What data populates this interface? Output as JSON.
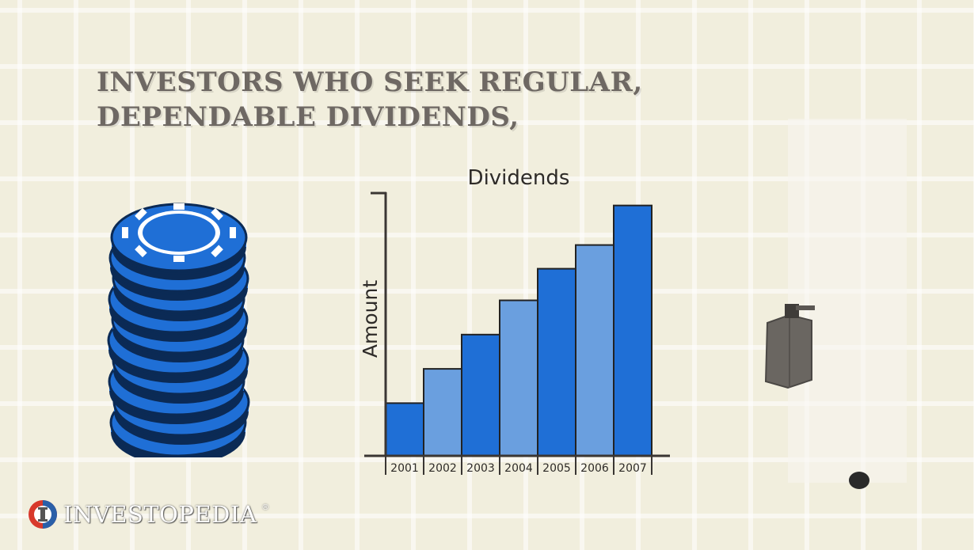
{
  "headline": "INVESTORS WHO SEEK REGULAR, DEPENDABLE DIVIDENDS,",
  "logo": {
    "text": "INVESTOPEDIA",
    "reg": "®"
  },
  "chart_data": {
    "type": "bar",
    "title": "Dividends",
    "xlabel": "",
    "ylabel": "Amount",
    "categories": [
      "2001",
      "2002",
      "2003",
      "2004",
      "2005",
      "2006",
      "2007"
    ],
    "values": [
      20,
      33,
      46,
      59,
      71,
      80,
      95
    ],
    "ylim": [
      0,
      100
    ],
    "grid": false,
    "colors": {
      "dark": "#1f6fd6",
      "light": "#6a9fdf",
      "axis": "#3a3633",
      "outline": "#222222"
    }
  },
  "colors": {
    "chip": "#1f6fd6",
    "chip_edge": "#0b2a55",
    "background": "#f1eedd"
  }
}
